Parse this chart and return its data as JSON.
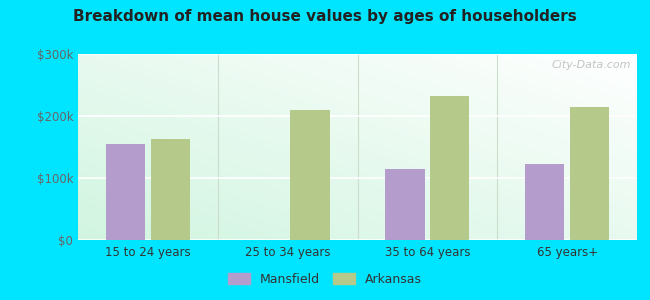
{
  "title": "Breakdown of mean house values by ages of householders",
  "categories": [
    "15 to 24 years",
    "25 to 34 years",
    "35 to 64 years",
    "65 years+"
  ],
  "mansfield": [
    155000,
    0,
    115000,
    122000
  ],
  "arkansas": [
    163000,
    210000,
    232000,
    215000
  ],
  "mansfield_color": "#b49dcc",
  "arkansas_color": "#b5c98a",
  "outer_bg": "#00e5ff",
  "plot_bg_color": "#e8f5ee",
  "ylim": [
    0,
    300000
  ],
  "yticks": [
    0,
    100000,
    200000,
    300000
  ],
  "ytick_labels": [
    "$0",
    "$100k",
    "$200k",
    "$300k"
  ],
  "legend_labels": [
    "Mansfield",
    "Arkansas"
  ],
  "bar_width": 0.28,
  "watermark": "City-Data.com"
}
